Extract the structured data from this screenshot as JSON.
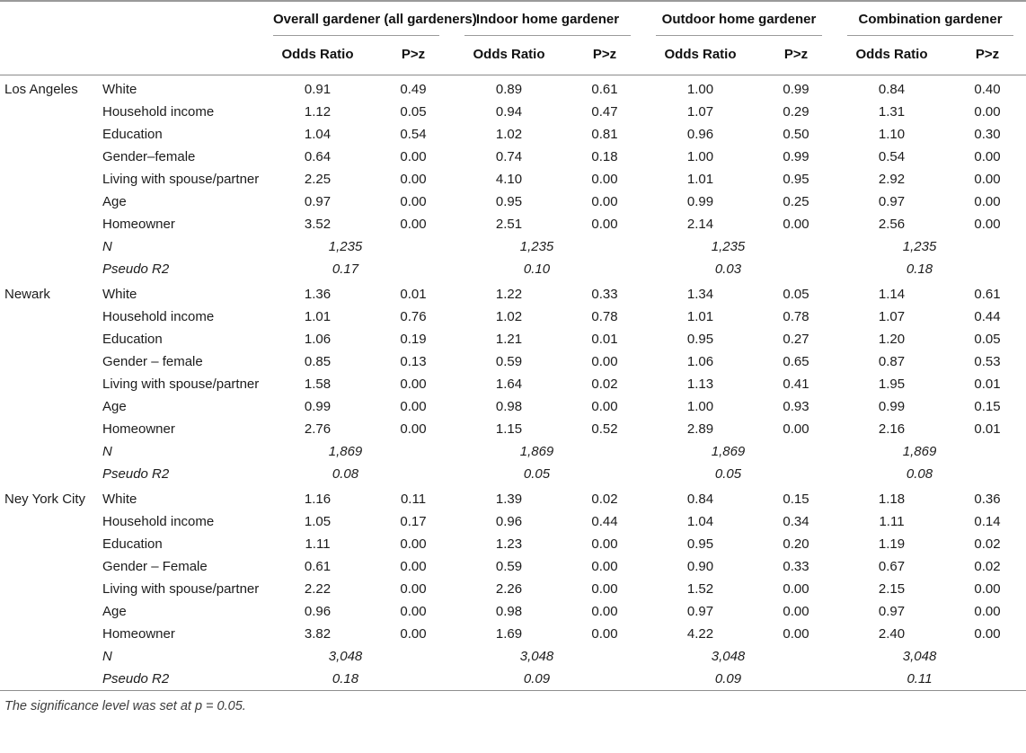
{
  "table": {
    "groups": [
      {
        "label": "Overall gardener (all gardeners)"
      },
      {
        "label": "Indoor home gardener"
      },
      {
        "label": "Outdoor home gardener"
      },
      {
        "label": "Combination gardener"
      }
    ],
    "col_headers": {
      "odds_ratio": "Odds Ratio",
      "p_gt_z": "P>z"
    },
    "stat_labels": {
      "n": "N",
      "pseudo_r2": "Pseudo R2"
    },
    "sections": [
      {
        "city": "Los Angeles",
        "rows": [
          {
            "label": "White",
            "values": [
              [
                "0.91",
                "0.49"
              ],
              [
                "0.89",
                "0.61"
              ],
              [
                "1.00",
                "0.99"
              ],
              [
                "0.84",
                "0.40"
              ]
            ]
          },
          {
            "label": "Household income",
            "values": [
              [
                "1.12",
                "0.05"
              ],
              [
                "0.94",
                "0.47"
              ],
              [
                "1.07",
                "0.29"
              ],
              [
                "1.31",
                "0.00"
              ]
            ]
          },
          {
            "label": "Education",
            "values": [
              [
                "1.04",
                "0.54"
              ],
              [
                "1.02",
                "0.81"
              ],
              [
                "0.96",
                "0.50"
              ],
              [
                "1.10",
                "0.30"
              ]
            ]
          },
          {
            "label": "Gender–female",
            "values": [
              [
                "0.64",
                "0.00"
              ],
              [
                "0.74",
                "0.18"
              ],
              [
                "1.00",
                "0.99"
              ],
              [
                "0.54",
                "0.00"
              ]
            ]
          },
          {
            "label": "Living with spouse/partner",
            "values": [
              [
                "2.25",
                "0.00"
              ],
              [
                "4.10",
                "0.00"
              ],
              [
                "1.01",
                "0.95"
              ],
              [
                "2.92",
                "0.00"
              ]
            ]
          },
          {
            "label": "Age",
            "values": [
              [
                "0.97",
                "0.00"
              ],
              [
                "0.95",
                "0.00"
              ],
              [
                "0.99",
                "0.25"
              ],
              [
                "0.97",
                "0.00"
              ]
            ]
          },
          {
            "label": "Homeowner",
            "values": [
              [
                "3.52",
                "0.00"
              ],
              [
                "2.51",
                "0.00"
              ],
              [
                "2.14",
                "0.00"
              ],
              [
                "2.56",
                "0.00"
              ]
            ]
          }
        ],
        "n": [
          "1,235",
          "1,235",
          "1,235",
          "1,235"
        ],
        "pseudo_r2": [
          "0.17",
          "0.10",
          "0.03",
          "0.18"
        ]
      },
      {
        "city": "Newark",
        "rows": [
          {
            "label": "White",
            "values": [
              [
                "1.36",
                "0.01"
              ],
              [
                "1.22",
                "0.33"
              ],
              [
                "1.34",
                "0.05"
              ],
              [
                "1.14",
                "0.61"
              ]
            ]
          },
          {
            "label": "Household income",
            "values": [
              [
                "1.01",
                "0.76"
              ],
              [
                "1.02",
                "0.78"
              ],
              [
                "1.01",
                "0.78"
              ],
              [
                "1.07",
                "0.44"
              ]
            ]
          },
          {
            "label": "Education",
            "values": [
              [
                "1.06",
                "0.19"
              ],
              [
                "1.21",
                "0.01"
              ],
              [
                "0.95",
                "0.27"
              ],
              [
                "1.20",
                "0.05"
              ]
            ]
          },
          {
            "label": "Gender – female",
            "values": [
              [
                "0.85",
                "0.13"
              ],
              [
                "0.59",
                "0.00"
              ],
              [
                "1.06",
                "0.65"
              ],
              [
                "0.87",
                "0.53"
              ]
            ]
          },
          {
            "label": "Living with spouse/partner",
            "values": [
              [
                "1.58",
                "0.00"
              ],
              [
                "1.64",
                "0.02"
              ],
              [
                "1.13",
                "0.41"
              ],
              [
                "1.95",
                "0.01"
              ]
            ]
          },
          {
            "label": "Age",
            "values": [
              [
                "0.99",
                "0.00"
              ],
              [
                "0.98",
                "0.00"
              ],
              [
                "1.00",
                "0.93"
              ],
              [
                "0.99",
                "0.15"
              ]
            ]
          },
          {
            "label": "Homeowner",
            "values": [
              [
                "2.76",
                "0.00"
              ],
              [
                "1.15",
                "0.52"
              ],
              [
                "2.89",
                "0.00"
              ],
              [
                "2.16",
                "0.01"
              ]
            ]
          }
        ],
        "n": [
          "1,869",
          "1,869",
          "1,869",
          "1,869"
        ],
        "pseudo_r2": [
          "0.08",
          "0.05",
          "0.05",
          "0.08"
        ]
      },
      {
        "city": "Ney York City",
        "rows": [
          {
            "label": "White",
            "values": [
              [
                "1.16",
                "0.11"
              ],
              [
                "1.39",
                "0.02"
              ],
              [
                "0.84",
                "0.15"
              ],
              [
                "1.18",
                "0.36"
              ]
            ]
          },
          {
            "label": "Household income",
            "values": [
              [
                "1.05",
                "0.17"
              ],
              [
                "0.96",
                "0.44"
              ],
              [
                "1.04",
                "0.34"
              ],
              [
                "1.11",
                "0.14"
              ]
            ]
          },
          {
            "label": "Education",
            "values": [
              [
                "1.11",
                "0.00"
              ],
              [
                "1.23",
                "0.00"
              ],
              [
                "0.95",
                "0.20"
              ],
              [
                "1.19",
                "0.02"
              ]
            ]
          },
          {
            "label": "Gender – Female",
            "values": [
              [
                "0.61",
                "0.00"
              ],
              [
                "0.59",
                "0.00"
              ],
              [
                "0.90",
                "0.33"
              ],
              [
                "0.67",
                "0.02"
              ]
            ]
          },
          {
            "label": "Living with spouse/partner",
            "values": [
              [
                "2.22",
                "0.00"
              ],
              [
                "2.26",
                "0.00"
              ],
              [
                "1.52",
                "0.00"
              ],
              [
                "2.15",
                "0.00"
              ]
            ]
          },
          {
            "label": "Age",
            "values": [
              [
                "0.96",
                "0.00"
              ],
              [
                "0.98",
                "0.00"
              ],
              [
                "0.97",
                "0.00"
              ],
              [
                "0.97",
                "0.00"
              ]
            ]
          },
          {
            "label": "Homeowner",
            "values": [
              [
                "3.82",
                "0.00"
              ],
              [
                "1.69",
                "0.00"
              ],
              [
                "4.22",
                "0.00"
              ],
              [
                "2.40",
                "0.00"
              ]
            ]
          }
        ],
        "n": [
          "3,048",
          "3,048",
          "3,048",
          "3,048"
        ],
        "pseudo_r2": [
          "0.18",
          "0.09",
          "0.09",
          "0.11"
        ]
      }
    ],
    "footnote": "The significance level was set at p = 0.05."
  }
}
